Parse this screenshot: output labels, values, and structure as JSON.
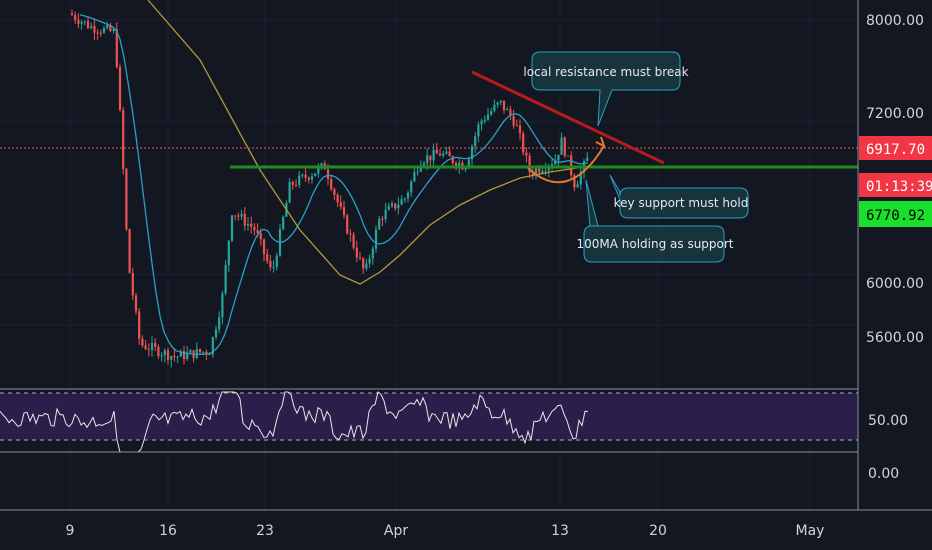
{
  "chart_data": {
    "type": "candlestick",
    "price_axis": {
      "ticks": [
        "8000.00",
        "7200.00",
        "6000.00",
        "5600.00"
      ],
      "tick_values": [
        8000,
        7200,
        6000,
        5600
      ],
      "scale": "linear"
    },
    "rsi_axis": {
      "ticks": [
        "50.00",
        "0.00"
      ],
      "tick_values": [
        50,
        0
      ]
    },
    "x_axis": {
      "ticks": [
        "9",
        "16",
        "23",
        "Apr",
        "13",
        "20",
        "May"
      ]
    },
    "badges": {
      "last_price": "6917.70",
      "countdown": "01:13:39",
      "support_level": "6770.92"
    },
    "levels": {
      "last_price": 6917.7,
      "support": 6770.92
    },
    "annotations": {
      "resistance": "local resistance must break",
      "support": "key support must hold",
      "ma": "100MA holding as support"
    },
    "series": [
      {
        "name": "price"
      },
      {
        "name": "fast MA"
      },
      {
        "name": "100MA"
      },
      {
        "name": "RSI"
      }
    ],
    "grid": true
  },
  "colors": {
    "background": "#131722",
    "up": "#26a69a",
    "down": "#ef5350",
    "support_line": "#1e8c1e",
    "resistance_line": "#b71c1c",
    "ma_fast": "#2aa0c8",
    "ma_slow": "#b59a3a",
    "rsi_band": "#2a1e4a",
    "badge_red": "#f23645",
    "badge_green": "#19e12b",
    "note_bg": "#17343d",
    "note_border": "#2aa0c8",
    "arc": "#e07b2c"
  }
}
